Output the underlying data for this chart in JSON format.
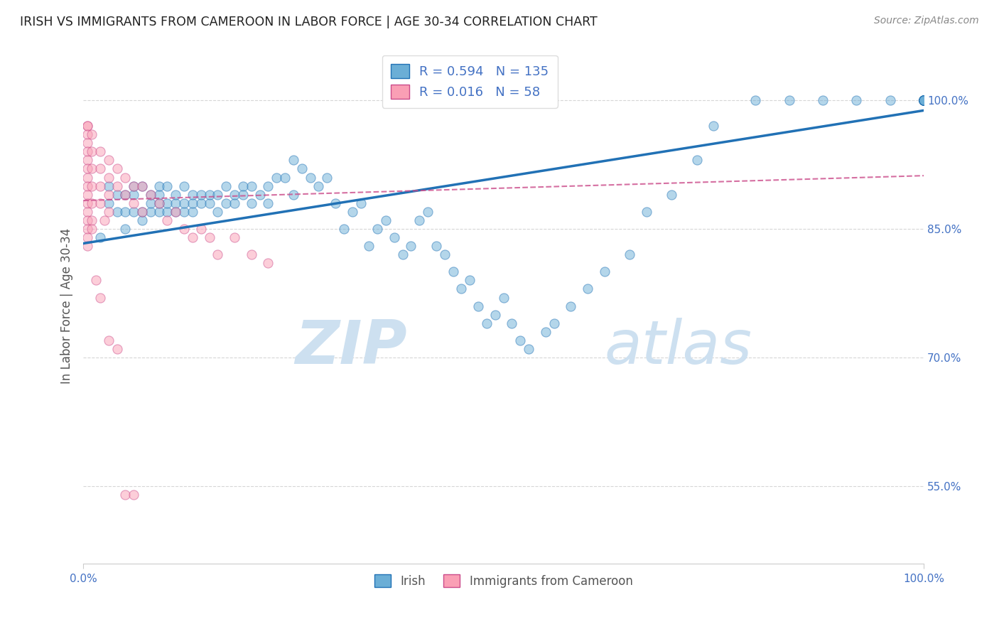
{
  "title": "IRISH VS IMMIGRANTS FROM CAMEROON IN LABOR FORCE | AGE 30-34 CORRELATION CHART",
  "source": "Source: ZipAtlas.com",
  "ylabel": "In Labor Force | Age 30-34",
  "xlim": [
    0.0,
    1.0
  ],
  "ylim": [
    0.46,
    1.06
  ],
  "yticks": [
    0.55,
    0.7,
    0.85,
    1.0
  ],
  "ytick_labels": [
    "55.0%",
    "70.0%",
    "85.0%",
    "100.0%"
  ],
  "blue_R": 0.594,
  "blue_N": 135,
  "pink_R": 0.016,
  "pink_N": 58,
  "blue_color": "#6baed6",
  "pink_color": "#fa9fb5",
  "blue_line_color": "#2171b5",
  "pink_line_color": "#cb4b8a",
  "blue_scatter_x": [
    0.02,
    0.03,
    0.03,
    0.04,
    0.04,
    0.05,
    0.05,
    0.05,
    0.06,
    0.06,
    0.06,
    0.07,
    0.07,
    0.07,
    0.08,
    0.08,
    0.08,
    0.09,
    0.09,
    0.09,
    0.09,
    0.1,
    0.1,
    0.1,
    0.11,
    0.11,
    0.11,
    0.12,
    0.12,
    0.12,
    0.13,
    0.13,
    0.13,
    0.14,
    0.14,
    0.15,
    0.15,
    0.16,
    0.16,
    0.17,
    0.17,
    0.18,
    0.18,
    0.19,
    0.19,
    0.2,
    0.2,
    0.21,
    0.22,
    0.22,
    0.23,
    0.24,
    0.25,
    0.25,
    0.26,
    0.27,
    0.28,
    0.29,
    0.3,
    0.31,
    0.32,
    0.33,
    0.34,
    0.35,
    0.36,
    0.37,
    0.38,
    0.39,
    0.4,
    0.41,
    0.42,
    0.43,
    0.44,
    0.45,
    0.46,
    0.47,
    0.48,
    0.49,
    0.5,
    0.51,
    0.52,
    0.53,
    0.55,
    0.56,
    0.58,
    0.6,
    0.62,
    0.65,
    0.67,
    0.7,
    0.73,
    0.75,
    0.8,
    0.84,
    0.88,
    0.92,
    0.96,
    1.0,
    1.0,
    1.0,
    1.0,
    1.0,
    1.0,
    1.0,
    1.0,
    1.0,
    1.0,
    1.0,
    1.0,
    1.0,
    1.0,
    1.0,
    1.0,
    1.0,
    1.0,
    1.0,
    1.0,
    1.0,
    1.0,
    1.0,
    1.0,
    1.0,
    1.0,
    1.0,
    1.0,
    1.0,
    1.0,
    1.0,
    1.0,
    1.0,
    1.0,
    1.0,
    1.0,
    1.0,
    1.0
  ],
  "blue_scatter_y": [
    0.84,
    0.88,
    0.9,
    0.87,
    0.89,
    0.85,
    0.87,
    0.89,
    0.87,
    0.89,
    0.9,
    0.86,
    0.87,
    0.9,
    0.87,
    0.88,
    0.89,
    0.87,
    0.88,
    0.89,
    0.9,
    0.87,
    0.88,
    0.9,
    0.87,
    0.88,
    0.89,
    0.87,
    0.88,
    0.9,
    0.87,
    0.88,
    0.89,
    0.88,
    0.89,
    0.88,
    0.89,
    0.87,
    0.89,
    0.88,
    0.9,
    0.88,
    0.89,
    0.9,
    0.89,
    0.88,
    0.9,
    0.89,
    0.9,
    0.88,
    0.91,
    0.91,
    0.89,
    0.93,
    0.92,
    0.91,
    0.9,
    0.91,
    0.88,
    0.85,
    0.87,
    0.88,
    0.83,
    0.85,
    0.86,
    0.84,
    0.82,
    0.83,
    0.86,
    0.87,
    0.83,
    0.82,
    0.8,
    0.78,
    0.79,
    0.76,
    0.74,
    0.75,
    0.77,
    0.74,
    0.72,
    0.71,
    0.73,
    0.74,
    0.76,
    0.78,
    0.8,
    0.82,
    0.87,
    0.89,
    0.93,
    0.97,
    1.0,
    1.0,
    1.0,
    1.0,
    1.0,
    1.0,
    1.0,
    1.0,
    1.0,
    1.0,
    1.0,
    1.0,
    1.0,
    1.0,
    1.0,
    1.0,
    1.0,
    1.0,
    1.0,
    1.0,
    1.0,
    1.0,
    1.0,
    1.0,
    1.0,
    1.0,
    1.0,
    1.0,
    1.0,
    1.0,
    1.0,
    1.0,
    1.0,
    1.0,
    1.0,
    1.0,
    1.0,
    1.0,
    1.0,
    1.0,
    1.0,
    1.0,
    1.0
  ],
  "pink_scatter_x": [
    0.005,
    0.005,
    0.005,
    0.005,
    0.005,
    0.005,
    0.005,
    0.005,
    0.005,
    0.005,
    0.005,
    0.005,
    0.005,
    0.005,
    0.005,
    0.005,
    0.01,
    0.01,
    0.01,
    0.01,
    0.01,
    0.01,
    0.01,
    0.02,
    0.02,
    0.02,
    0.02,
    0.025,
    0.03,
    0.03,
    0.03,
    0.03,
    0.04,
    0.04,
    0.05,
    0.05,
    0.06,
    0.06,
    0.07,
    0.07,
    0.08,
    0.09,
    0.1,
    0.11,
    0.12,
    0.13,
    0.14,
    0.15,
    0.16,
    0.18,
    0.2,
    0.22,
    0.015,
    0.02,
    0.03,
    0.04,
    0.05,
    0.06
  ],
  "pink_scatter_y": [
    0.97,
    0.97,
    0.96,
    0.95,
    0.94,
    0.93,
    0.92,
    0.91,
    0.9,
    0.89,
    0.88,
    0.87,
    0.86,
    0.85,
    0.84,
    0.83,
    0.96,
    0.94,
    0.92,
    0.9,
    0.88,
    0.86,
    0.85,
    0.94,
    0.92,
    0.9,
    0.88,
    0.86,
    0.93,
    0.91,
    0.89,
    0.87,
    0.92,
    0.9,
    0.91,
    0.89,
    0.9,
    0.88,
    0.9,
    0.87,
    0.89,
    0.88,
    0.86,
    0.87,
    0.85,
    0.84,
    0.85,
    0.84,
    0.82,
    0.84,
    0.82,
    0.81,
    0.79,
    0.77,
    0.72,
    0.71,
    0.54,
    0.54
  ],
  "blue_trend_x": [
    0.0,
    1.0
  ],
  "blue_trend_y": [
    0.833,
    0.988
  ],
  "pink_trend_x": [
    0.0,
    1.0
  ],
  "pink_trend_y": [
    0.883,
    0.912
  ],
  "watermark_zip": "ZIP",
  "watermark_atlas": "atlas",
  "legend_blue_label": "Irish",
  "legend_pink_label": "Immigrants from Cameroon",
  "title_color": "#222222",
  "axis_color": "#4472c4",
  "grid_color": "#cccccc",
  "background_color": "#ffffff"
}
